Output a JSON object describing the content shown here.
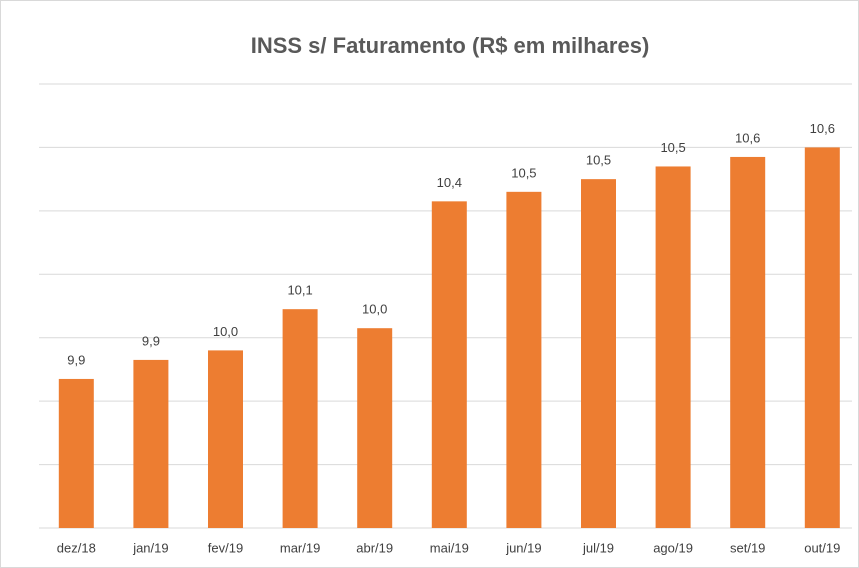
{
  "chart_data": {
    "type": "bar",
    "title": "INSS s/ Faturamento  (R$ em milhares)",
    "categories": [
      "dez/18",
      "jan/19",
      "fev/19",
      "mar/19",
      "abr/19",
      "mai/19",
      "jun/19",
      "jul/19",
      "ago/19",
      "set/19",
      "out/19"
    ],
    "values": [
      9.87,
      9.93,
      9.96,
      10.09,
      10.03,
      10.43,
      10.46,
      10.5,
      10.54,
      10.57,
      10.6
    ],
    "value_labels": [
      "9,9",
      "9,9",
      "10,0",
      "10,1",
      "10,0",
      "10,4",
      "10,5",
      "10,5",
      "10,5",
      "10,6",
      "10,6"
    ],
    "color": "#ed7d31",
    "ylim": [
      9.4,
      10.8
    ],
    "yticks": [
      9.4,
      9.6,
      9.8,
      10,
      10.2,
      10.4,
      10.6,
      10.8
    ],
    "grid": true,
    "show_tick_labels": false
  }
}
